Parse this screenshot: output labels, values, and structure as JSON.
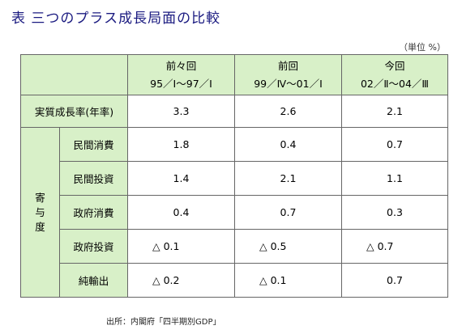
{
  "title": "表 三つのプラス成長局面の比較",
  "unit_note": "（単位 %）",
  "columns": [
    {
      "name": "前々回",
      "period": "95／Ⅰ～97／Ⅰ"
    },
    {
      "name": "前回",
      "period": "99／Ⅳ～01／Ⅰ"
    },
    {
      "name": "今回",
      "period": "02／Ⅱ～04／Ⅲ"
    }
  ],
  "growth_row": {
    "label": "実質成長率(年率)",
    "values": [
      "3.3",
      "2.6",
      "2.1"
    ]
  },
  "contribution_label": [
    "寄",
    "与",
    "度"
  ],
  "contribution_rows": [
    {
      "label": "民間消費",
      "values": [
        "1.8",
        "0.4",
        "0.7"
      ]
    },
    {
      "label": "民間投資",
      "values": [
        "1.4",
        "2.1",
        "1.1"
      ]
    },
    {
      "label": "政府消費",
      "values": [
        "0.4",
        "0.7",
        "0.3"
      ]
    },
    {
      "label": "政府投資",
      "values": [
        "△ 0.1",
        "△ 0.5",
        "△ 0.7"
      ]
    },
    {
      "label": "純輸出",
      "values": [
        "△ 0.2",
        "△ 0.1",
        "0.7"
      ]
    }
  ],
  "source": "出所：内閣府「四半期別GDP」",
  "colors": {
    "header_bg": "#d8f0c8",
    "title": "#1a1a80"
  }
}
